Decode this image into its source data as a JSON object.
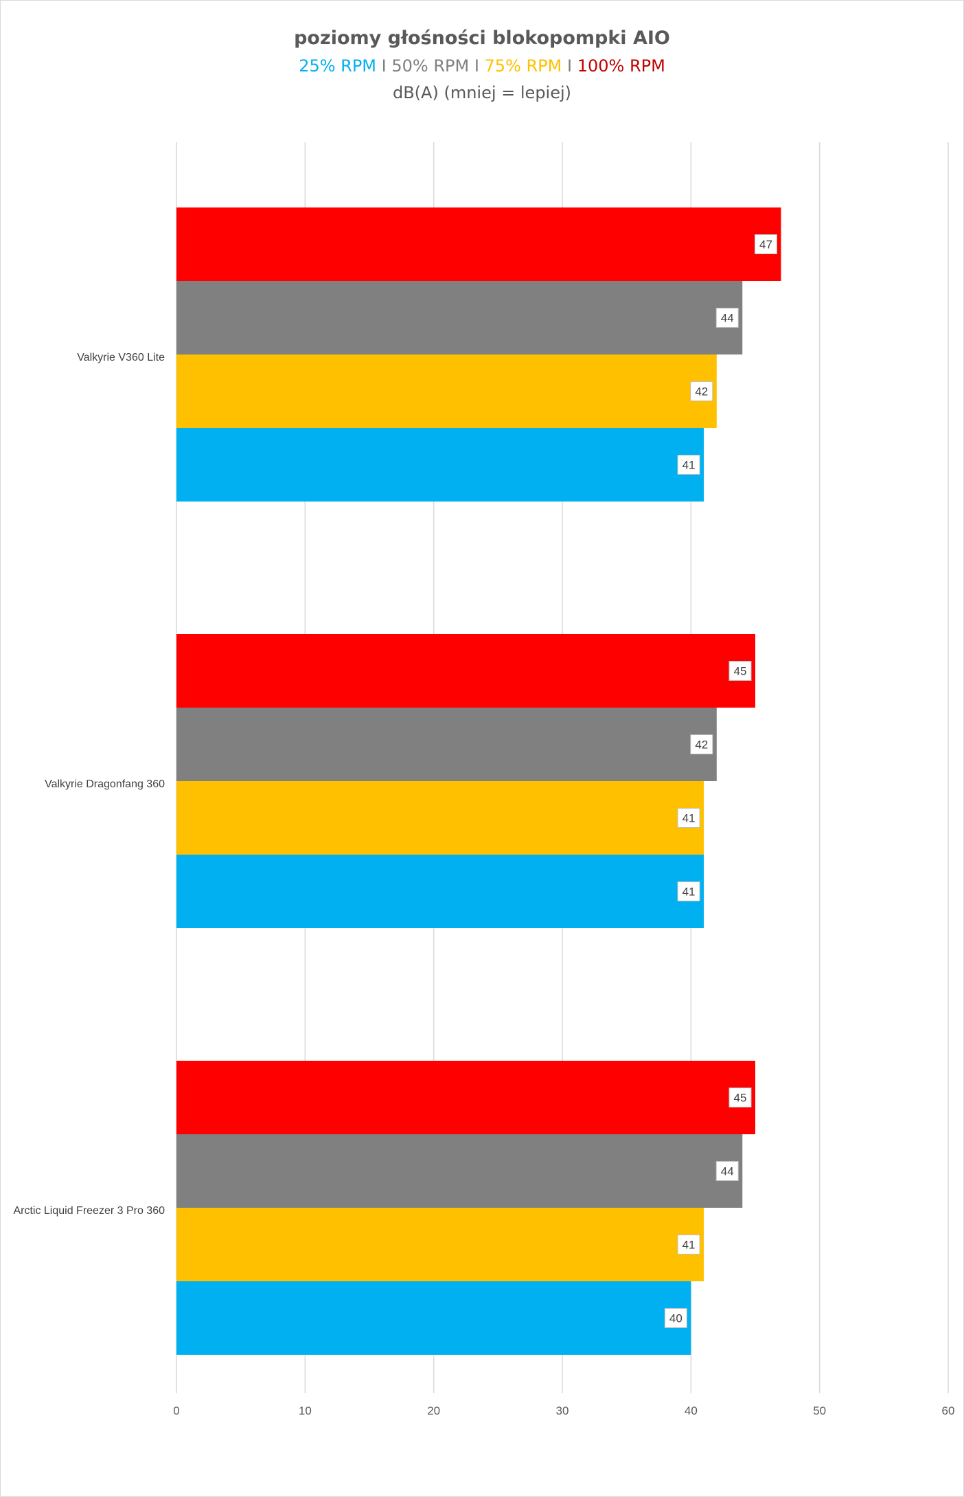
{
  "chart_data": {
    "type": "bar",
    "orientation": "horizontal",
    "title": "poziomy głośności blokopompki AIO",
    "subtitle_legend": [
      {
        "text": "25% RPM",
        "color": "#00b0f0"
      },
      {
        "text": " I ",
        "color": "#7f7f7f"
      },
      {
        "text": "50% RPM",
        "color": "#808080"
      },
      {
        "text": " I ",
        "color": "#7f7f7f"
      },
      {
        "text": "75% RPM",
        "color": "#ffc000"
      },
      {
        "text": " I ",
        "color": "#7f7f7f"
      },
      {
        "text": "100% RPM",
        "color": "#c00000"
      }
    ],
    "unit_line": "dB(A) (mniej = lepiej)",
    "categories": [
      "Valkyrie V360 Lite",
      "Valkyrie Dragonfang 360",
      "Arctic Liquid Freezer 3 Pro 360"
    ],
    "series": [
      {
        "name": "100% RPM",
        "color": "#ff0000",
        "values": [
          47,
          45,
          45
        ]
      },
      {
        "name": "50% RPM",
        "color": "#808080",
        "values": [
          44,
          42,
          44
        ]
      },
      {
        "name": "75% RPM",
        "color": "#ffc000",
        "values": [
          42,
          41,
          41
        ]
      },
      {
        "name": "25% RPM",
        "color": "#00b0f0",
        "values": [
          41,
          41,
          40
        ]
      }
    ],
    "xlim": [
      0,
      60
    ],
    "xticks": [
      "0",
      "10",
      "20",
      "30",
      "40",
      "50",
      "60"
    ],
    "grid": true,
    "data_labels": true
  }
}
